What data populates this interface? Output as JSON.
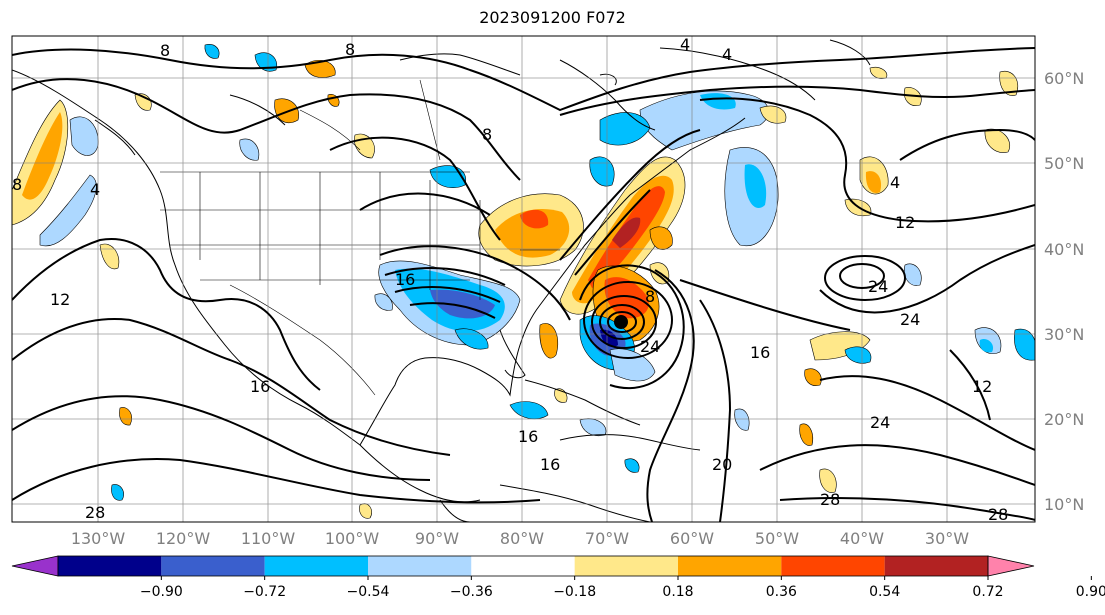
{
  "title": "2023091200 F072",
  "lon_labels": [
    "130°W",
    "120°W",
    "110°W",
    "100°W",
    "90°W",
    "80°W",
    "70°W",
    "60°W",
    "50°W",
    "40°W",
    "30°W"
  ],
  "lat_labels": [
    "60°N",
    "50°N",
    "40°N",
    "30°N",
    "20°N",
    "10°N"
  ],
  "contour_labels": [
    {
      "text": "8"
    },
    {
      "text": "4"
    },
    {
      "text": "4"
    },
    {
      "text": "8"
    },
    {
      "text": "8"
    },
    {
      "text": "4"
    },
    {
      "text": "12"
    },
    {
      "text": "8"
    },
    {
      "text": "4"
    },
    {
      "text": "12"
    },
    {
      "text": "16"
    },
    {
      "text": "16"
    },
    {
      "text": "24"
    },
    {
      "text": "16"
    },
    {
      "text": "24"
    },
    {
      "text": "20"
    },
    {
      "text": "24"
    },
    {
      "text": "28"
    },
    {
      "text": "16"
    },
    {
      "text": "16"
    },
    {
      "text": "28"
    },
    {
      "text": "28"
    },
    {
      "text": "12"
    },
    {
      "text": "24"
    },
    {
      "text": "8"
    }
  ],
  "colorbar": {
    "ticks": [
      "−0.90",
      "−0.72",
      "−0.54",
      "−0.36",
      "−0.18",
      "0.18",
      "0.36",
      "0.54",
      "0.72",
      "0.90"
    ],
    "colors": [
      "#9932cc",
      "#00008b",
      "#3a5fcd",
      "#00bfff",
      "#add8ff",
      "#ffffff",
      "#ffe88a",
      "#ffa500",
      "#ff4500",
      "#b22222",
      "#ff82ab"
    ]
  }
}
